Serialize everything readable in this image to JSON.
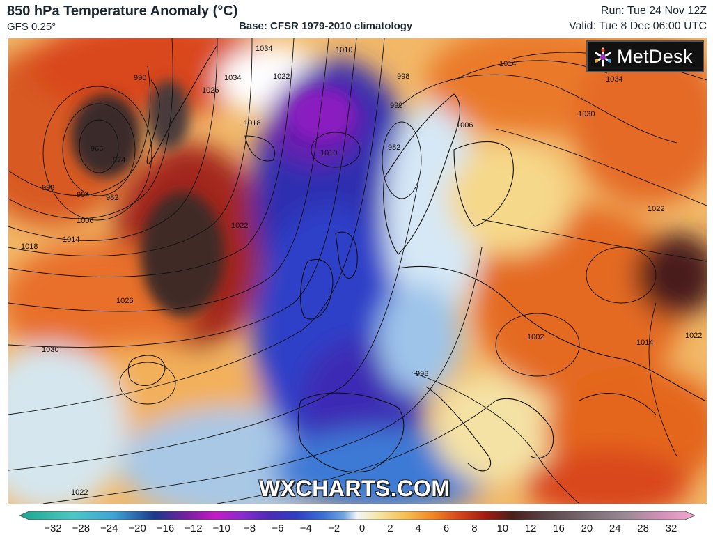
{
  "header": {
    "title": "850 hPa Temperature Anomaly (°C)",
    "model": "GFS 0.25°",
    "base": "Base: CFSR 1979-2010 climatology",
    "run": "Run: Tue 24 Nov 12Z",
    "valid": "Valid: Tue 8 Dec 06:00 UTC"
  },
  "logo": {
    "text": "MetDesk",
    "icon": "metdesk-snowflake-icon"
  },
  "watermark": "WXCHARTS.COM",
  "isobar_labels": [
    "966",
    "974",
    "982",
    "990",
    "998",
    "994",
    "1006",
    "1014",
    "1018",
    "1018",
    "1022",
    "1026",
    "1030",
    "1034",
    "1034",
    "1026",
    "1022",
    "1010",
    "1010",
    "998",
    "990",
    "982",
    "1014",
    "1006",
    "1030",
    "1022",
    "1002",
    "1014",
    "1022",
    "1034",
    "998",
    "1022"
  ],
  "colorbar": {
    "ticks": [
      "−32",
      "−28",
      "−24",
      "−20",
      "−16",
      "−12",
      "−10",
      "−8",
      "−6",
      "−4",
      "−2",
      "0",
      "2",
      "4",
      "6",
      "8",
      "10",
      "12",
      "16",
      "20",
      "24",
      "28",
      "32"
    ],
    "colors": [
      "#1aa58c",
      "#2fb7a6",
      "#4cc7c8",
      "#3da3d6",
      "#7b1fa2",
      "#c41bc4",
      "#8b2bd0",
      "#4b2bb8",
      "#2e3fc4",
      "#3a6fd6",
      "#6fa6e2",
      "#e8f0f8",
      "#f6e6a6",
      "#f7c155",
      "#f08a24",
      "#d9461b",
      "#a31a10",
      "#4a1f1a",
      "#5a4448",
      "#7a6a72",
      "#9c8a96",
      "#d490b8",
      "#f2a8d0"
    ]
  }
}
